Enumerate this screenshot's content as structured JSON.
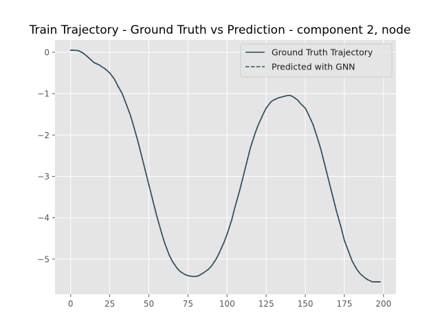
{
  "chart_data": {
    "type": "line",
    "title": "Train Trajectory - Ground Truth vs Prediction - component 2, node",
    "xlabel": "",
    "ylabel": "",
    "xlim": [
      -10,
      208
    ],
    "ylim": [
      -5.85,
      0.3
    ],
    "xticks": [
      0,
      25,
      50,
      75,
      100,
      125,
      150,
      175,
      200
    ],
    "yticks": [
      0,
      -1,
      -2,
      -3,
      -4,
      -5
    ],
    "ytick_labels": [
      "0",
      "−1",
      "−2",
      "−3",
      "−4",
      "−5"
    ],
    "grid": true,
    "legend_position": "top-right",
    "colors": {
      "axes_bg": "#e5e5e5",
      "grid": "#ffffff",
      "ground_truth": "#2a4d5e",
      "prediction": "#2a4d5e"
    },
    "series": [
      {
        "name": "Ground Truth Trajectory",
        "style": "solid",
        "x": [
          0,
          2,
          5,
          8,
          10,
          12,
          15,
          18,
          20,
          22,
          25,
          28,
          30,
          33,
          35,
          38,
          40,
          43,
          45,
          48,
          50,
          53,
          55,
          58,
          60,
          63,
          65,
          68,
          70,
          73,
          75,
          78,
          80,
          82,
          85,
          88,
          90,
          93,
          95,
          98,
          100,
          103,
          105,
          108,
          110,
          113,
          115,
          118,
          120,
          123,
          125,
          128,
          130,
          133,
          135,
          138,
          140,
          142,
          145,
          147,
          150,
          152,
          155,
          158,
          160,
          163,
          165,
          168,
          170,
          173,
          175,
          178,
          180,
          183,
          185,
          188,
          190,
          193,
          195,
          198
        ],
        "y": [
          0.05,
          0.05,
          0.04,
          -0.02,
          -0.08,
          -0.15,
          -0.25,
          -0.3,
          -0.35,
          -0.4,
          -0.5,
          -0.65,
          -0.8,
          -1.0,
          -1.2,
          -1.5,
          -1.75,
          -2.15,
          -2.45,
          -2.9,
          -3.2,
          -3.65,
          -3.95,
          -4.35,
          -4.6,
          -4.9,
          -5.05,
          -5.22,
          -5.3,
          -5.37,
          -5.4,
          -5.42,
          -5.42,
          -5.4,
          -5.33,
          -5.25,
          -5.17,
          -5.0,
          -4.85,
          -4.6,
          -4.4,
          -4.05,
          -3.75,
          -3.35,
          -3.05,
          -2.6,
          -2.3,
          -1.95,
          -1.75,
          -1.5,
          -1.35,
          -1.2,
          -1.15,
          -1.1,
          -1.08,
          -1.05,
          -1.04,
          -1.07,
          -1.15,
          -1.24,
          -1.35,
          -1.5,
          -1.75,
          -2.1,
          -2.35,
          -2.8,
          -3.1,
          -3.55,
          -3.85,
          -4.25,
          -4.55,
          -4.85,
          -5.05,
          -5.25,
          -5.35,
          -5.45,
          -5.5,
          -5.55,
          -5.55,
          -5.55
        ]
      },
      {
        "name": "Predicted with GNN",
        "style": "dashed",
        "x": [
          0,
          2,
          5,
          8,
          10,
          12,
          15,
          18,
          20,
          22,
          25,
          28,
          30,
          33,
          35,
          38,
          40,
          43,
          45,
          48,
          50,
          53,
          55,
          58,
          60,
          63,
          65,
          68,
          70,
          73,
          75,
          78,
          80,
          82,
          85,
          88,
          90,
          93,
          95,
          98,
          100,
          103,
          105,
          108,
          110,
          113,
          115,
          118,
          120,
          123,
          125,
          128,
          130,
          133,
          135,
          138,
          140,
          142,
          145,
          147,
          150,
          152,
          155,
          158,
          160,
          163,
          165,
          168,
          170,
          173,
          175,
          178,
          180,
          183,
          185,
          188,
          190,
          193,
          195,
          198
        ],
        "y": [
          0.05,
          0.05,
          0.04,
          -0.02,
          -0.08,
          -0.15,
          -0.25,
          -0.3,
          -0.35,
          -0.4,
          -0.5,
          -0.65,
          -0.8,
          -1.0,
          -1.2,
          -1.5,
          -1.75,
          -2.15,
          -2.45,
          -2.9,
          -3.2,
          -3.65,
          -3.95,
          -4.35,
          -4.6,
          -4.9,
          -5.05,
          -5.22,
          -5.3,
          -5.37,
          -5.4,
          -5.42,
          -5.42,
          -5.4,
          -5.33,
          -5.25,
          -5.17,
          -5.0,
          -4.85,
          -4.6,
          -4.4,
          -4.05,
          -3.75,
          -3.35,
          -3.05,
          -2.6,
          -2.3,
          -1.95,
          -1.75,
          -1.5,
          -1.35,
          -1.2,
          -1.15,
          -1.1,
          -1.08,
          -1.05,
          -1.04,
          -1.07,
          -1.15,
          -1.24,
          -1.35,
          -1.5,
          -1.75,
          -2.1,
          -2.35,
          -2.8,
          -3.1,
          -3.55,
          -3.85,
          -4.25,
          -4.55,
          -4.85,
          -5.05,
          -5.25,
          -5.35,
          -5.45,
          -5.5,
          -5.55,
          -5.55,
          -5.55
        ]
      }
    ]
  }
}
